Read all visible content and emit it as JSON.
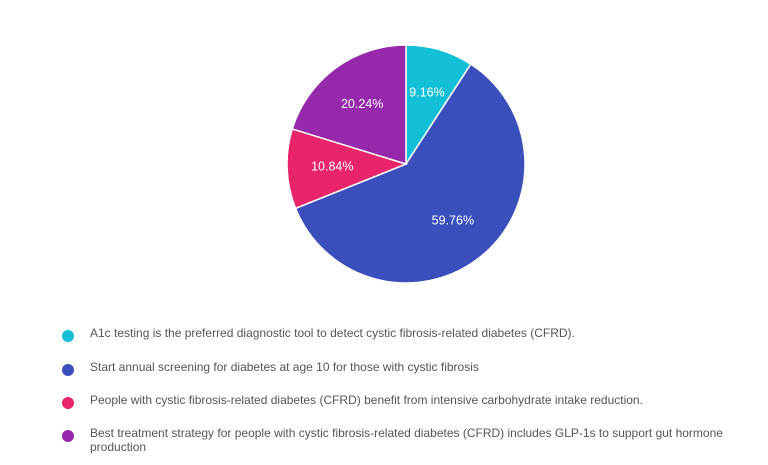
{
  "chart_data": {
    "type": "pie",
    "title": "",
    "slices": [
      {
        "label": "A1c testing is the preferred diagnostic tool to detect cystic fibrosis-related diabetes (CFRD).",
        "value": 9.16,
        "display": "9.16%",
        "color": "#12BFD6"
      },
      {
        "label": "Start annual screening for diabetes at age 10 for those with cystic fibrosis",
        "value": 59.76,
        "display": "59.76%",
        "color": "#3A4FBC"
      },
      {
        "label": "People with cystic fibrosis-related diabetes (CFRD) benefit from intensive carbohydrate intake reduction.",
        "value": 10.84,
        "display": "10.84%",
        "color": "#E8246B"
      },
      {
        "label": "Best treatment strategy for people with cystic fibrosis-related diabetes (CFRD) includes GLP-1s to support gut hormone production",
        "value": 20.24,
        "display": "20.24%",
        "color": "#9528AB"
      }
    ],
    "legend_position": "bottom"
  }
}
